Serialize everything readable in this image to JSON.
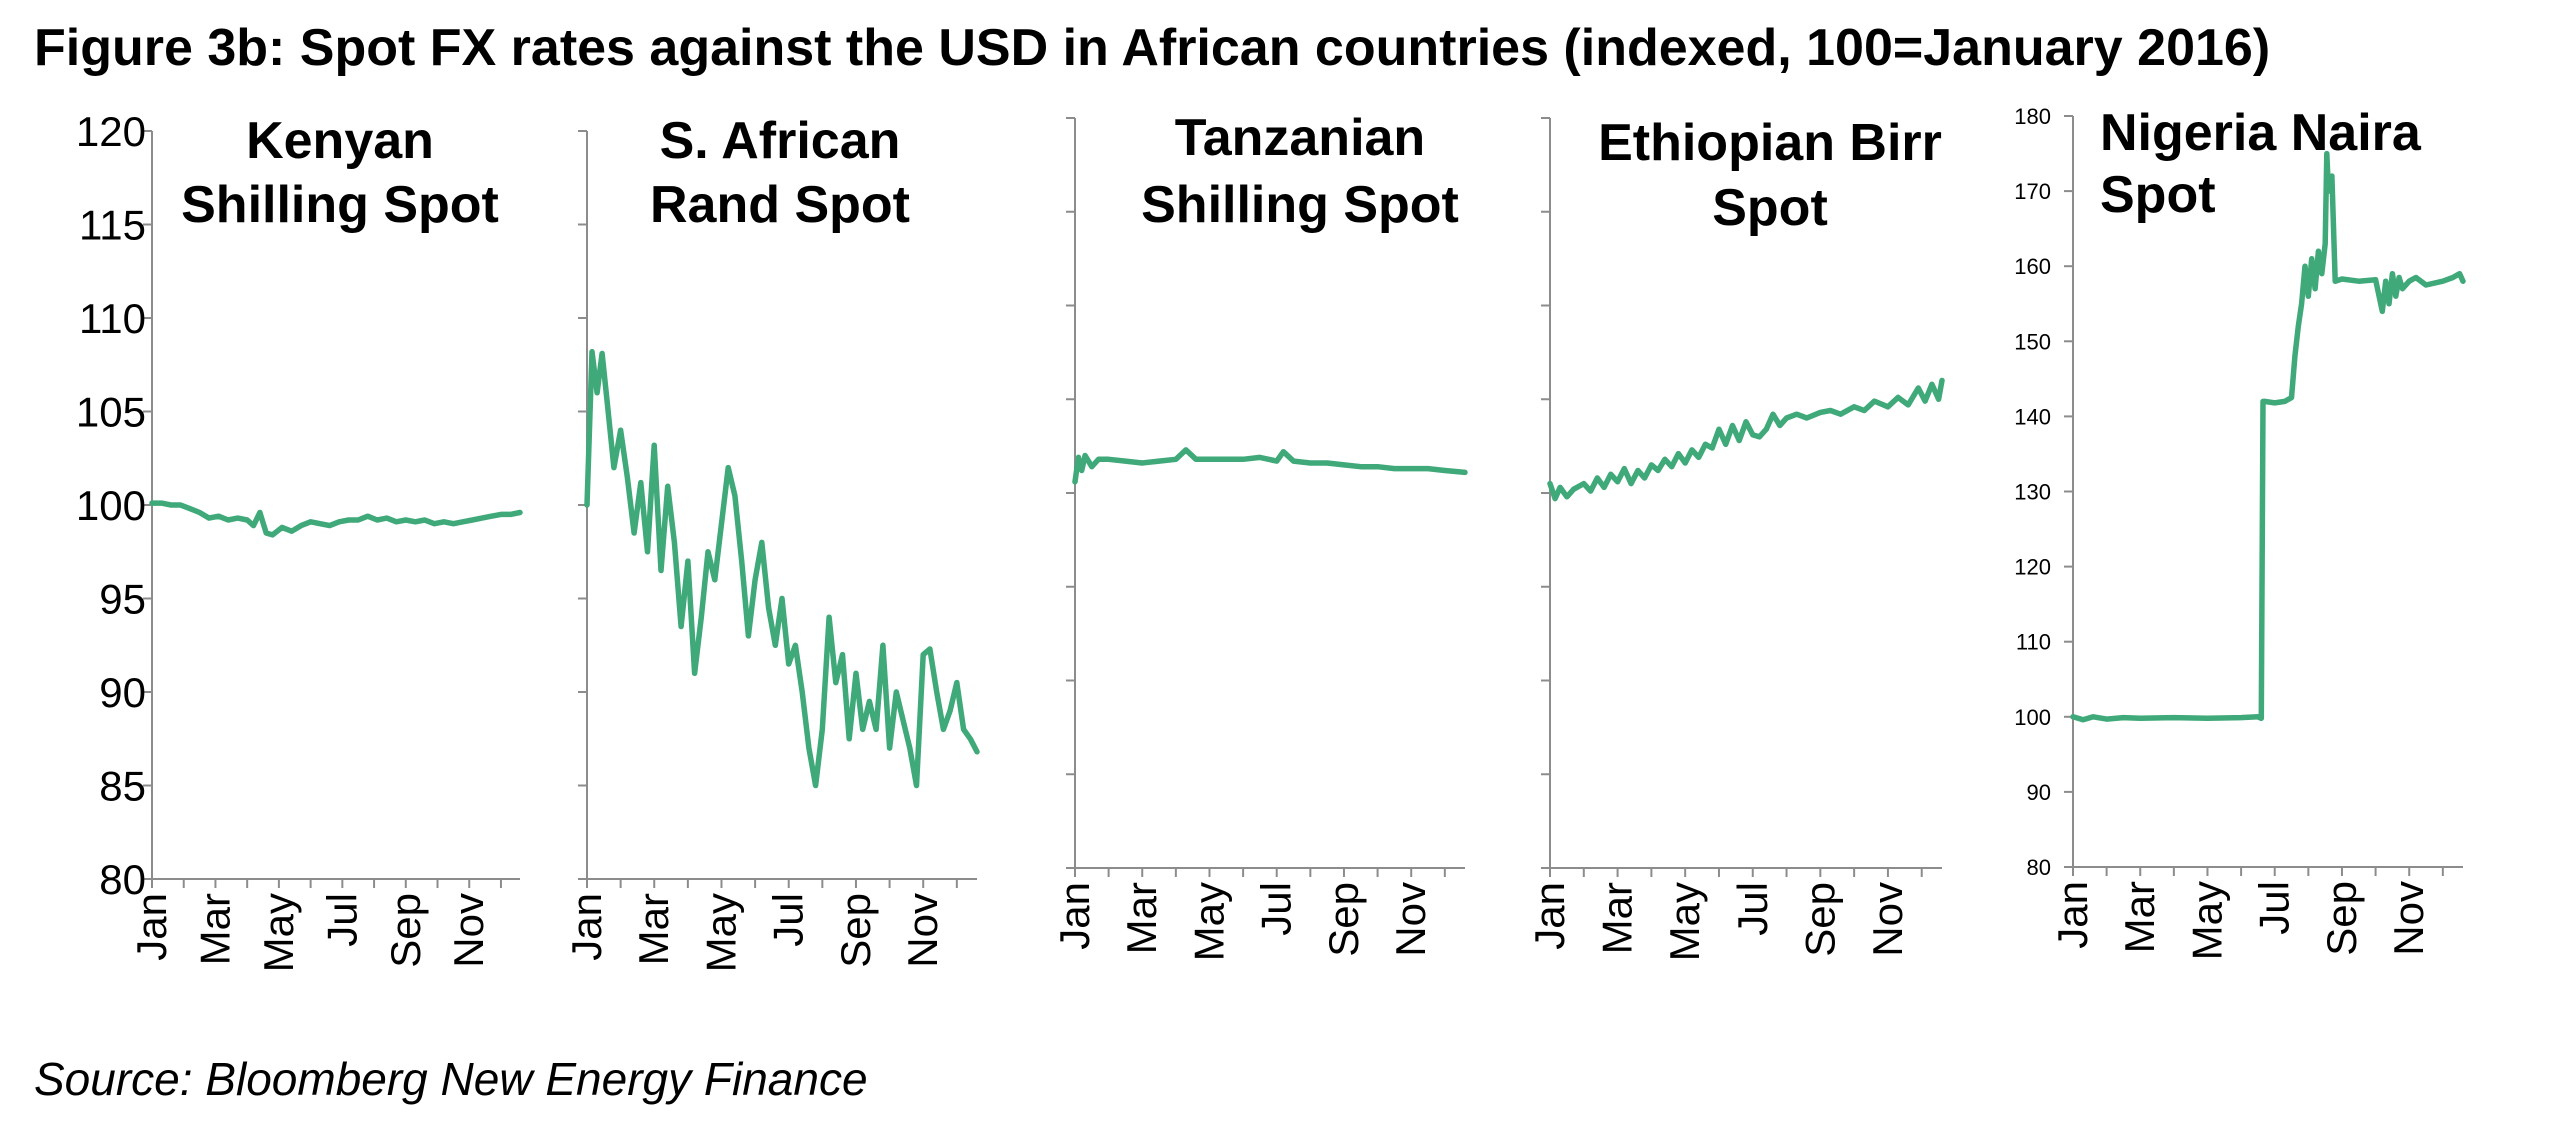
{
  "figure": {
    "title": "Figure 3b: Spot FX rates against the USD in African countries (indexed, 100=January 2016)",
    "source": "Source: Bloomberg New Energy Finance",
    "line_color": "#3fa97a"
  },
  "chart_data": [
    {
      "type": "line",
      "title": [
        "Kenyan",
        "Shilling Spot"
      ],
      "series_name": "Kenyan Shilling Spot",
      "ylim": [
        80,
        120
      ],
      "yticks": [
        80,
        85,
        90,
        95,
        100,
        105,
        110,
        115,
        120
      ],
      "show_ytick_labels": true,
      "x_ticks": [
        "Jan",
        "Mar",
        "May",
        "Jul",
        "Sep",
        "Nov"
      ],
      "x": [
        0,
        0.3,
        0.6,
        0.9,
        1.2,
        1.5,
        1.8,
        2.1,
        2.4,
        2.7,
        3.0,
        3.2,
        3.4,
        3.6,
        3.8,
        4.1,
        4.4,
        4.7,
        5.0,
        5.3,
        5.6,
        5.9,
        6.2,
        6.5,
        6.8,
        7.1,
        7.4,
        7.7,
        8.0,
        8.3,
        8.6,
        8.9,
        9.2,
        9.5,
        9.8,
        10.1,
        10.4,
        10.7,
        11.0,
        11.3,
        11.6
      ],
      "values": [
        100.1,
        100.1,
        100.0,
        100.0,
        99.8,
        99.6,
        99.3,
        99.4,
        99.2,
        99.3,
        99.2,
        98.9,
        99.6,
        98.5,
        98.4,
        98.8,
        98.6,
        98.9,
        99.1,
        99.0,
        98.9,
        99.1,
        99.2,
        99.2,
        99.4,
        99.2,
        99.3,
        99.1,
        99.2,
        99.1,
        99.2,
        99.0,
        99.1,
        99.0,
        99.1,
        99.2,
        99.3,
        99.4,
        99.5,
        99.5,
        99.6
      ]
    },
    {
      "type": "line",
      "title": [
        "S. African",
        "Rand Spot"
      ],
      "series_name": "S. African Rand Spot",
      "ylim": [
        80,
        120
      ],
      "yticks": [
        80,
        85,
        90,
        95,
        100,
        105,
        110,
        115,
        120
      ],
      "show_ytick_labels": false,
      "x_ticks": [
        "Jan",
        "Mar",
        "May",
        "Jul",
        "Sep",
        "Nov"
      ],
      "x": [
        0,
        0.15,
        0.3,
        0.45,
        0.6,
        0.8,
        1.0,
        1.2,
        1.4,
        1.6,
        1.8,
        2.0,
        2.2,
        2.4,
        2.6,
        2.8,
        3.0,
        3.2,
        3.4,
        3.6,
        3.8,
        4.0,
        4.2,
        4.4,
        4.6,
        4.8,
        5.0,
        5.2,
        5.4,
        5.6,
        5.8,
        6.0,
        6.2,
        6.4,
        6.6,
        6.8,
        7.0,
        7.2,
        7.4,
        7.6,
        7.8,
        8.0,
        8.2,
        8.4,
        8.6,
        8.8,
        9.0,
        9.2,
        9.4,
        9.6,
        9.8,
        10.0,
        10.2,
        10.4,
        10.6,
        10.8,
        11.0,
        11.2,
        11.4,
        11.6
      ],
      "values": [
        100.0,
        108.2,
        106.0,
        108.1,
        105.5,
        102.0,
        104.0,
        101.5,
        98.5,
        101.2,
        97.5,
        103.2,
        96.5,
        101.0,
        98.0,
        93.5,
        97.0,
        91.0,
        94.0,
        97.5,
        96.0,
        99.0,
        102.0,
        100.5,
        97.0,
        93.0,
        96.0,
        98.0,
        94.5,
        92.5,
        95.0,
        91.5,
        92.5,
        90.0,
        87.0,
        85.0,
        88.0,
        94.0,
        90.5,
        92.0,
        87.5,
        91.0,
        88.0,
        89.5,
        88.0,
        92.5,
        87.0,
        90.0,
        88.5,
        87.0,
        85.0,
        92.0,
        92.3,
        90.0,
        88.0,
        89.0,
        90.5,
        88.0,
        87.5,
        86.8
      ]
    },
    {
      "type": "line",
      "title": [
        "Tanzanian",
        "Shilling Spot"
      ],
      "series_name": "Tanzanian Shilling Spot",
      "ylim": [
        80,
        120
      ],
      "yticks": [
        80,
        85,
        90,
        95,
        100,
        105,
        110,
        115,
        120
      ],
      "show_ytick_labels": false,
      "x_ticks": [
        "Jan",
        "Mar",
        "May",
        "Jul",
        "Sep",
        "Nov"
      ],
      "x": [
        0,
        0.1,
        0.2,
        0.3,
        0.5,
        0.7,
        1.0,
        1.5,
        2.0,
        2.5,
        3.0,
        3.3,
        3.6,
        4.0,
        4.5,
        5.0,
        5.5,
        6.0,
        6.2,
        6.5,
        7.0,
        7.5,
        8.0,
        8.5,
        9.0,
        9.5,
        10.0,
        10.5,
        11.0,
        11.6
      ],
      "values": [
        100.6,
        101.9,
        101.2,
        102.0,
        101.4,
        101.8,
        101.8,
        101.7,
        101.6,
        101.7,
        101.8,
        102.3,
        101.8,
        101.8,
        101.8,
        101.8,
        101.9,
        101.7,
        102.2,
        101.7,
        101.6,
        101.6,
        101.5,
        101.4,
        101.4,
        101.3,
        101.3,
        101.3,
        101.2,
        101.1
      ]
    },
    {
      "type": "line",
      "title": [
        "Ethiopian Birr",
        "Spot"
      ],
      "series_name": "Ethiopian Birr Spot",
      "ylim": [
        80,
        120
      ],
      "yticks": [
        80,
        85,
        90,
        95,
        100,
        105,
        110,
        115,
        120
      ],
      "show_ytick_labels": false,
      "x_ticks": [
        "Jan",
        "Mar",
        "May",
        "Jul",
        "Sep",
        "Nov"
      ],
      "x": [
        0,
        0.15,
        0.3,
        0.5,
        0.7,
        1.0,
        1.2,
        1.4,
        1.6,
        1.8,
        2.0,
        2.2,
        2.4,
        2.6,
        2.8,
        3.0,
        3.2,
        3.4,
        3.6,
        3.8,
        4.0,
        4.2,
        4.4,
        4.6,
        4.8,
        5.0,
        5.2,
        5.4,
        5.6,
        5.8,
        6.0,
        6.2,
        6.4,
        6.6,
        6.8,
        7.0,
        7.3,
        7.6,
        8.0,
        8.3,
        8.6,
        9.0,
        9.3,
        9.6,
        10.0,
        10.3,
        10.6,
        10.9,
        11.1,
        11.3,
        11.5,
        11.6
      ],
      "values": [
        100.5,
        99.7,
        100.3,
        99.8,
        100.2,
        100.5,
        100.1,
        100.8,
        100.3,
        101.0,
        100.6,
        101.3,
        100.5,
        101.2,
        100.8,
        101.5,
        101.2,
        101.8,
        101.4,
        102.1,
        101.6,
        102.3,
        101.9,
        102.6,
        102.4,
        103.4,
        102.6,
        103.6,
        102.8,
        103.8,
        103.1,
        103.0,
        103.4,
        104.2,
        103.6,
        104.0,
        104.2,
        104.0,
        104.3,
        104.4,
        104.2,
        104.6,
        104.4,
        104.9,
        104.6,
        105.1,
        104.7,
        105.6,
        104.9,
        105.8,
        105.0,
        106.0
      ]
    },
    {
      "type": "line",
      "title": [
        "Nigeria Naira",
        "Spot"
      ],
      "series_name": "Nigeria Naira Spot",
      "ylim": [
        80,
        180
      ],
      "yticks": [
        80,
        90,
        100,
        110,
        120,
        130,
        140,
        150,
        160,
        170,
        180
      ],
      "show_ytick_labels": true,
      "x_ticks": [
        "Jan",
        "Mar",
        "May",
        "Jul",
        "Sep",
        "Nov"
      ],
      "x": [
        0,
        0.3,
        0.6,
        1.0,
        1.5,
        2.0,
        3.0,
        4.0,
        5.0,
        5.5,
        5.6,
        5.65,
        5.7,
        6.0,
        6.3,
        6.5,
        6.6,
        6.7,
        6.8,
        6.9,
        7.0,
        7.1,
        7.2,
        7.3,
        7.4,
        7.5,
        7.55,
        7.6,
        7.7,
        7.8,
        8.0,
        8.5,
        9.0,
        9.2,
        9.3,
        9.4,
        9.5,
        9.6,
        9.7,
        9.8,
        10.0,
        10.2,
        10.5,
        11.0,
        11.3,
        11.5,
        11.6
      ],
      "values": [
        100.0,
        99.6,
        100.0,
        99.7,
        99.9,
        99.8,
        99.9,
        99.8,
        99.9,
        100.0,
        99.8,
        142.0,
        142.0,
        141.8,
        142.0,
        142.5,
        148.0,
        152.0,
        155.0,
        160.0,
        156.0,
        161.0,
        157.0,
        162.0,
        159.0,
        163.0,
        175.0,
        170.0,
        172.0,
        158.0,
        158.3,
        158.0,
        158.2,
        154.0,
        158.0,
        155.0,
        159.0,
        156.0,
        158.5,
        157.0,
        158.0,
        158.5,
        157.5,
        158.0,
        158.5,
        159.0,
        158.0
      ]
    }
  ]
}
